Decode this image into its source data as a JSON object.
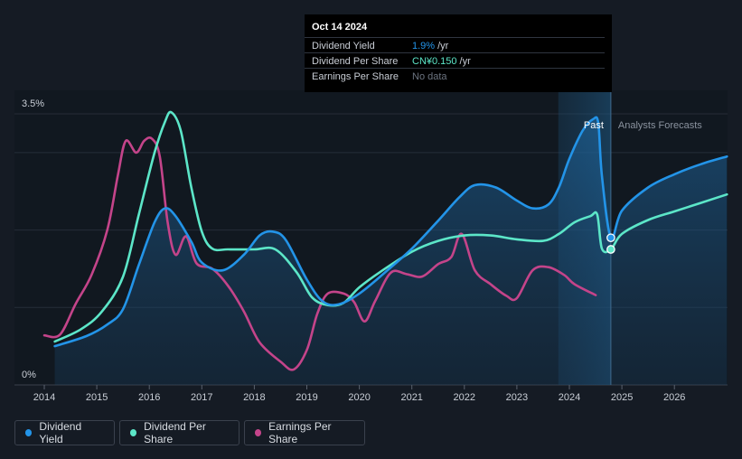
{
  "tooltip": {
    "date": "Oct 14 2024",
    "rows": [
      {
        "label": "Dividend Yield",
        "value": "1.9%",
        "unit": "/yr"
      },
      {
        "label": "Dividend Per Share",
        "value": "CN¥0.150",
        "unit": "/yr"
      },
      {
        "label": "Earnings Per Share",
        "value": "No data",
        "unit": ""
      }
    ]
  },
  "labels": {
    "past": "Past",
    "forecast": "Analysts Forecasts"
  },
  "legend": [
    {
      "label": "Dividend Yield",
      "color": "#2394e8"
    },
    {
      "label": "Dividend Per Share",
      "color": "#5ce6c8"
    },
    {
      "label": "Earnings Per Share",
      "color": "#c4448a"
    }
  ],
  "chart_data": {
    "type": "line",
    "x_ticks": [
      "2014",
      "2015",
      "2016",
      "2017",
      "2018",
      "2019",
      "2020",
      "2021",
      "2022",
      "2023",
      "2024",
      "2025",
      "2026"
    ],
    "y_ticks": [
      "0%",
      "3.5%"
    ],
    "ylim": [
      0,
      3.5
    ],
    "xlim": [
      2013.5,
      2027.0
    ],
    "past_end": 2024.79,
    "forecast_band_start": 2023.79,
    "series": [
      {
        "name": "Dividend Yield",
        "color": "#2394e8",
        "points": [
          [
            2014.2,
            0.5
          ],
          [
            2014.8,
            0.63
          ],
          [
            2015.2,
            0.78
          ],
          [
            2015.5,
            0.98
          ],
          [
            2015.8,
            1.55
          ],
          [
            2016.1,
            2.1
          ],
          [
            2016.3,
            2.28
          ],
          [
            2016.5,
            2.18
          ],
          [
            2016.8,
            1.85
          ],
          [
            2017.0,
            1.58
          ],
          [
            2017.4,
            1.48
          ],
          [
            2017.8,
            1.68
          ],
          [
            2018.1,
            1.93
          ],
          [
            2018.35,
            1.98
          ],
          [
            2018.6,
            1.87
          ],
          [
            2019.0,
            1.36
          ],
          [
            2019.3,
            1.08
          ],
          [
            2019.6,
            1.04
          ],
          [
            2020.0,
            1.18
          ],
          [
            2020.5,
            1.46
          ],
          [
            2021.0,
            1.76
          ],
          [
            2021.5,
            2.12
          ],
          [
            2021.9,
            2.42
          ],
          [
            2022.2,
            2.58
          ],
          [
            2022.6,
            2.55
          ],
          [
            2023.0,
            2.38
          ],
          [
            2023.3,
            2.28
          ],
          [
            2023.6,
            2.33
          ],
          [
            2023.8,
            2.55
          ],
          [
            2024.0,
            2.92
          ],
          [
            2024.25,
            3.28
          ],
          [
            2024.45,
            3.43
          ],
          [
            2024.55,
            3.38
          ],
          [
            2024.62,
            2.7
          ],
          [
            2024.79,
            1.9
          ],
          [
            2025.0,
            2.25
          ],
          [
            2025.5,
            2.55
          ],
          [
            2026.0,
            2.72
          ],
          [
            2026.5,
            2.85
          ],
          [
            2027.0,
            2.95
          ]
        ]
      },
      {
        "name": "Dividend Per Share",
        "color": "#5ce6c8",
        "points": [
          [
            2014.2,
            0.56
          ],
          [
            2014.7,
            0.72
          ],
          [
            2015.1,
            0.95
          ],
          [
            2015.5,
            1.4
          ],
          [
            2015.8,
            2.2
          ],
          [
            2016.1,
            3.0
          ],
          [
            2016.3,
            3.4
          ],
          [
            2016.42,
            3.52
          ],
          [
            2016.6,
            3.28
          ],
          [
            2016.8,
            2.55
          ],
          [
            2017.0,
            1.98
          ],
          [
            2017.2,
            1.76
          ],
          [
            2017.5,
            1.75
          ],
          [
            2018.0,
            1.75
          ],
          [
            2018.4,
            1.75
          ],
          [
            2018.8,
            1.46
          ],
          [
            2019.1,
            1.13
          ],
          [
            2019.4,
            1.03
          ],
          [
            2019.7,
            1.06
          ],
          [
            2020.0,
            1.26
          ],
          [
            2020.4,
            1.46
          ],
          [
            2021.0,
            1.72
          ],
          [
            2021.5,
            1.86
          ],
          [
            2022.0,
            1.93
          ],
          [
            2022.5,
            1.93
          ],
          [
            2023.0,
            1.88
          ],
          [
            2023.5,
            1.86
          ],
          [
            2023.8,
            1.95
          ],
          [
            2024.1,
            2.1
          ],
          [
            2024.4,
            2.18
          ],
          [
            2024.53,
            2.2
          ],
          [
            2024.62,
            1.76
          ],
          [
            2024.79,
            1.75
          ],
          [
            2025.0,
            1.95
          ],
          [
            2025.5,
            2.13
          ],
          [
            2026.0,
            2.24
          ],
          [
            2026.5,
            2.35
          ],
          [
            2027.0,
            2.46
          ]
        ]
      },
      {
        "name": "Earnings Per Share",
        "color": "#c4448a",
        "points": [
          [
            2014.0,
            0.64
          ],
          [
            2014.3,
            0.65
          ],
          [
            2014.6,
            1.05
          ],
          [
            2014.9,
            1.42
          ],
          [
            2015.2,
            2.0
          ],
          [
            2015.4,
            2.7
          ],
          [
            2015.55,
            3.15
          ],
          [
            2015.75,
            3.0
          ],
          [
            2015.9,
            3.15
          ],
          [
            2016.05,
            3.18
          ],
          [
            2016.2,
            2.95
          ],
          [
            2016.35,
            2.1
          ],
          [
            2016.5,
            1.68
          ],
          [
            2016.7,
            1.92
          ],
          [
            2016.9,
            1.57
          ],
          [
            2017.2,
            1.5
          ],
          [
            2017.5,
            1.28
          ],
          [
            2017.8,
            0.95
          ],
          [
            2018.1,
            0.55
          ],
          [
            2018.5,
            0.3
          ],
          [
            2018.75,
            0.2
          ],
          [
            2019.0,
            0.45
          ],
          [
            2019.2,
            0.92
          ],
          [
            2019.4,
            1.18
          ],
          [
            2019.7,
            1.18
          ],
          [
            2019.9,
            1.07
          ],
          [
            2020.1,
            0.82
          ],
          [
            2020.3,
            1.08
          ],
          [
            2020.6,
            1.45
          ],
          [
            2020.9,
            1.43
          ],
          [
            2021.2,
            1.4
          ],
          [
            2021.5,
            1.56
          ],
          [
            2021.75,
            1.65
          ],
          [
            2021.95,
            1.95
          ],
          [
            2022.2,
            1.48
          ],
          [
            2022.5,
            1.3
          ],
          [
            2022.8,
            1.15
          ],
          [
            2023.0,
            1.12
          ],
          [
            2023.3,
            1.48
          ],
          [
            2023.6,
            1.52
          ],
          [
            2023.9,
            1.42
          ],
          [
            2024.1,
            1.3
          ],
          [
            2024.5,
            1.16
          ]
        ]
      }
    ],
    "markers": [
      {
        "series": "Dividend Yield",
        "x": 2024.79,
        "y": 1.9
      },
      {
        "series": "Dividend Per Share",
        "x": 2024.79,
        "y": 1.75
      }
    ]
  }
}
